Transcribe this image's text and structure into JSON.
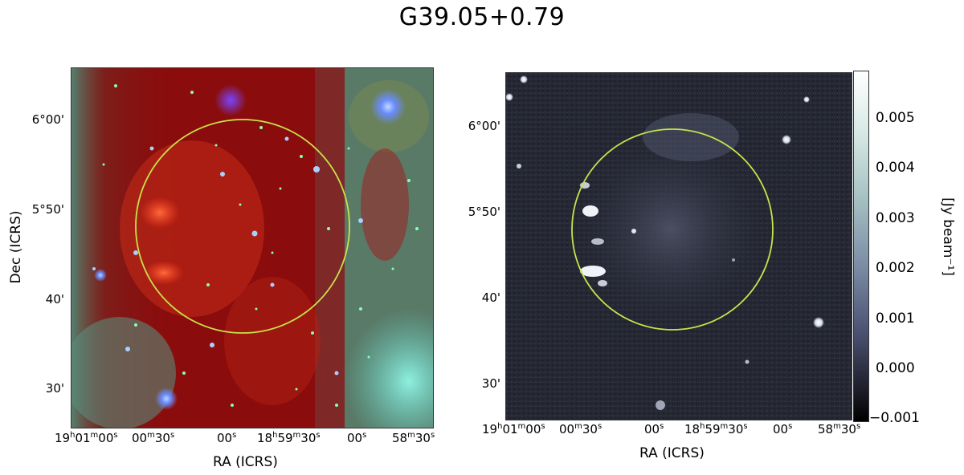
{
  "title": "G39.05+0.79",
  "left_panel": {
    "y_axis_label": "Dec (ICRS)",
    "x_axis_label": "RA (ICRS)",
    "y_ticks": [
      "6°00'",
      "5°50'",
      "40'",
      "30'"
    ],
    "x_ticks": [
      {
        "main": "19",
        "s1": "h",
        "m": "01",
        "s2": "m",
        "sec": "00",
        "s3": "s"
      },
      {
        "main": "00",
        "s1": "m",
        "m": "30",
        "s2": "s",
        "sec": "",
        "s3": ""
      },
      {
        "main": "00",
        "s1": "s",
        "m": "",
        "s2": "",
        "sec": "",
        "s3": ""
      },
      {
        "main": "18",
        "s1": "h",
        "m": "59",
        "s2": "m",
        "sec": "30",
        "s3": "s"
      },
      {
        "main": "00",
        "s1": "s",
        "m": "",
        "s2": "",
        "sec": "",
        "s3": ""
      },
      {
        "main": "58",
        "s1": "m",
        "m": "30",
        "s2": "s",
        "sec": "",
        "s3": ""
      }
    ]
  },
  "right_panel": {
    "x_axis_label": "RA (ICRS)",
    "y_ticks": [
      "6°00'",
      "5°50'",
      "40'",
      "30'"
    ],
    "x_ticks": [
      {
        "main": "19",
        "s1": "h",
        "m": "01",
        "s2": "m",
        "sec": "00",
        "s3": "s"
      },
      {
        "main": "00",
        "s1": "m",
        "m": "30",
        "s2": "s",
        "sec": "",
        "s3": ""
      },
      {
        "main": "00",
        "s1": "s",
        "m": "",
        "s2": "",
        "sec": "",
        "s3": ""
      },
      {
        "main": "18",
        "s1": "h",
        "m": "59",
        "s2": "m",
        "sec": "30",
        "s3": "s"
      },
      {
        "main": "00",
        "s1": "s",
        "m": "",
        "s2": "",
        "sec": "",
        "s3": ""
      },
      {
        "main": "58",
        "s1": "m",
        "m": "30",
        "s2": "s",
        "sec": "",
        "s3": ""
      }
    ]
  },
  "colorbar": {
    "label": "[Jy beam⁻¹]",
    "ticks": [
      "0.005",
      "0.004",
      "0.003",
      "0.002",
      "0.001",
      "0.000",
      "−0.001"
    ]
  },
  "colors": {
    "circle": "#c8e34a",
    "rgb_base": "#8a0c0c",
    "radio_base": "#2a2d3a"
  }
}
